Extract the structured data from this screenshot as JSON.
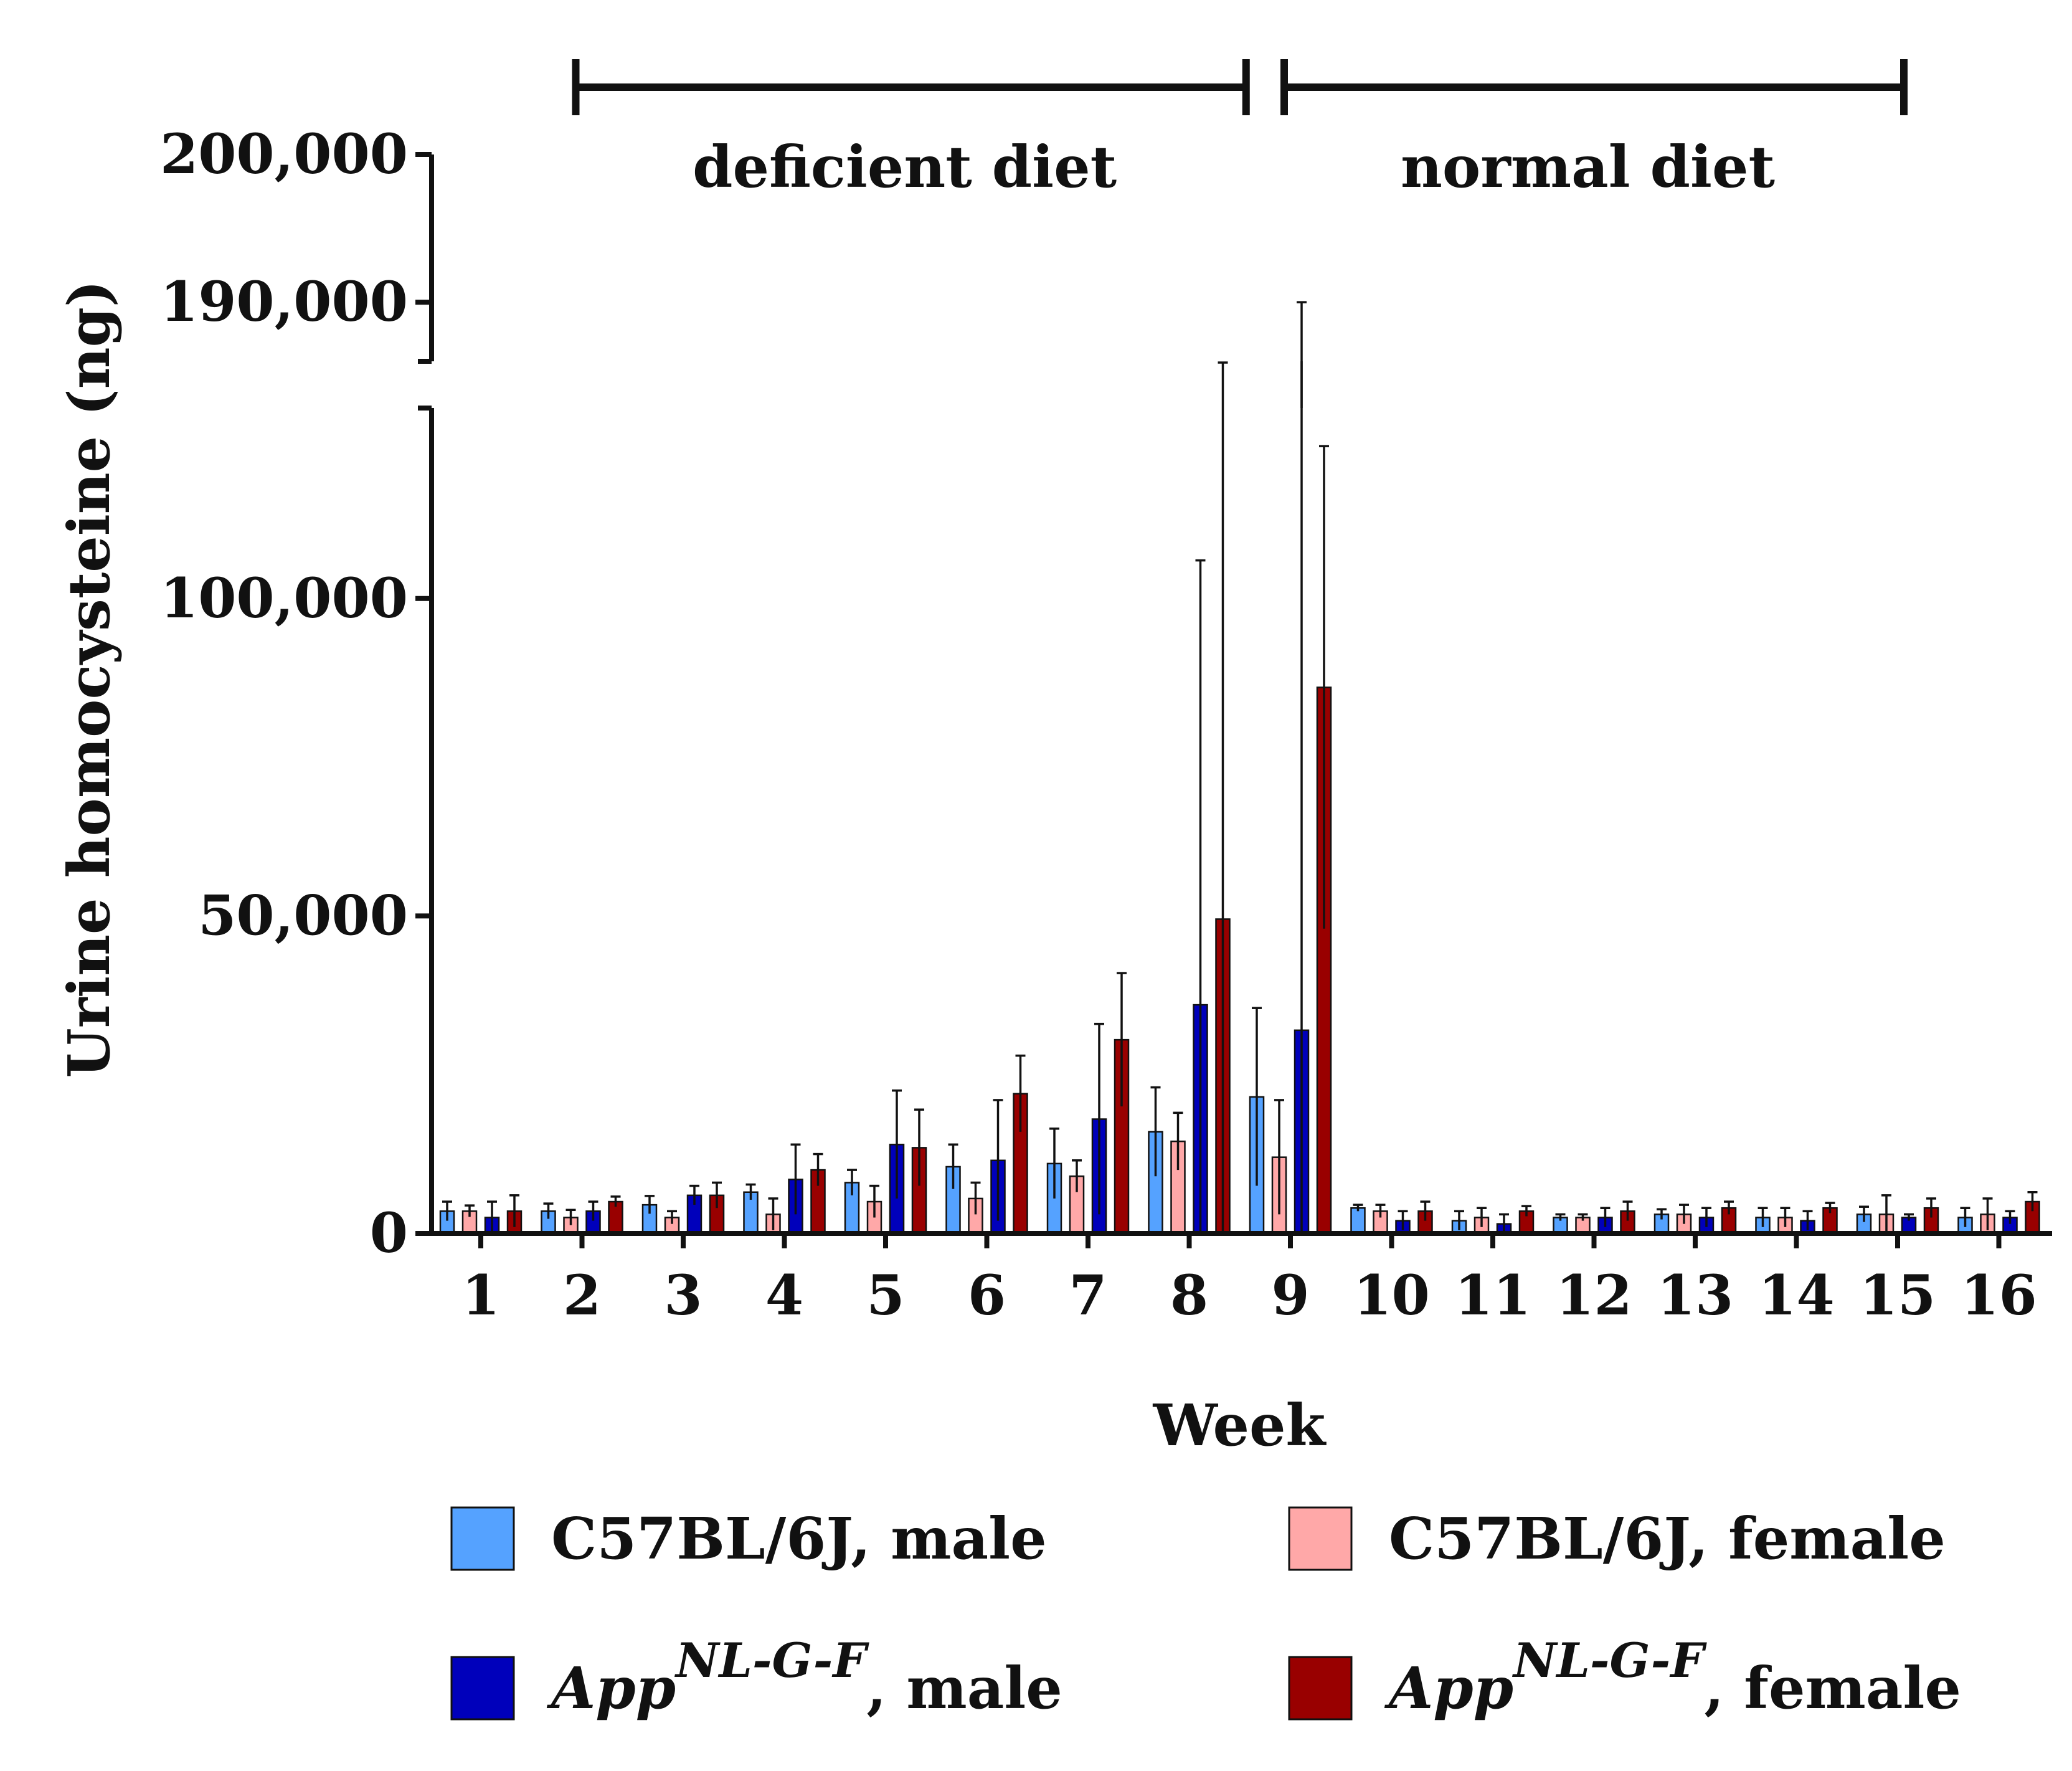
{
  "chart_data": {
    "type": "bar",
    "title": "",
    "xlabel": "Week",
    "ylabel": "Urine homocysteine (ng)",
    "categories": [
      "1",
      "2",
      "3",
      "4",
      "5",
      "6",
      "7",
      "8",
      "9",
      "10",
      "11",
      "12",
      "13",
      "14",
      "15",
      "16"
    ],
    "y_axis_lower": {
      "range": [
        0,
        130000
      ],
      "ticks": [
        {
          "value": 0,
          "label": "0"
        },
        {
          "value": 50000,
          "label": "50,000"
        },
        {
          "value": 100000,
          "label": "100,000"
        }
      ]
    },
    "y_axis_upper": {
      "range": [
        186000,
        200000
      ],
      "ticks": [
        {
          "value": 190000,
          "label": "190,000"
        },
        {
          "value": 200000,
          "label": "200,000"
        }
      ]
    },
    "periods": [
      {
        "label": "deficient diet",
        "from_week": 2,
        "to_week": 8.5
      },
      {
        "label": "normal diet",
        "from_week": 9,
        "to_week": 15
      }
    ],
    "series": [
      {
        "name": "C57BL/6J, male",
        "color": "#55a2ff",
        "values": [
          3500,
          3500,
          4500,
          6500,
          8000,
          10500,
          11000,
          16000,
          21500,
          4000,
          2000,
          2500,
          3000,
          2500,
          3000,
          2500
        ],
        "errors": [
          1500,
          1200,
          1400,
          1200,
          2000,
          3500,
          5500,
          7000,
          14000,
          500,
          1500,
          500,
          800,
          1500,
          1200,
          1500
        ]
      },
      {
        "name": "C57BL/6J, female",
        "color": "#ffa8a8",
        "values": [
          3500,
          2500,
          2500,
          3000,
          5000,
          5500,
          9000,
          14500,
          12000,
          3500,
          2500,
          2500,
          3000,
          2500,
          3000,
          3000
        ],
        "errors": [
          900,
          1200,
          1000,
          2500,
          2500,
          2500,
          2500,
          4500,
          9000,
          1000,
          1500,
          500,
          1500,
          1500,
          3000,
          2500
        ]
      },
      {
        "name": "App^NL-G-F, male",
        "color": "#0000bb",
        "values": [
          2500,
          3500,
          6000,
          8500,
          14000,
          11500,
          18000,
          36000,
          32000,
          2000,
          1500,
          2500,
          2500,
          2000,
          2500,
          2500
        ],
        "errors": [
          2500,
          1500,
          1500,
          5500,
          8500,
          9500,
          15000,
          70000,
          158000,
          1500,
          1500,
          1500,
          1500,
          1500,
          500,
          1000
        ]
      },
      {
        "name": "App^NL-G-F, female",
        "color": "#990000",
        "values": [
          3500,
          5000,
          6000,
          10000,
          13500,
          22000,
          30500,
          49500,
          86000,
          3500,
          3500,
          3500,
          4000,
          4000,
          4000,
          5000
        ],
        "errors": [
          2500,
          800,
          2000,
          2500,
          6000,
          6000,
          10500,
          135000,
          38000,
          1500,
          800,
          1500,
          1000,
          800,
          1500,
          1500
        ]
      }
    ],
    "legend": [
      {
        "base": "C57BL/6J, male",
        "sup": "",
        "suffix": "",
        "color": "#55a2ff"
      },
      {
        "base": "C57BL/6J, female",
        "sup": "",
        "suffix": "",
        "color": "#ffa8a8"
      },
      {
        "base": "App",
        "sup": "NL-G-F",
        "suffix": ", male",
        "color": "#0000bb"
      },
      {
        "base": "App",
        "sup": "NL-G-F",
        "suffix": ", female",
        "color": "#990000"
      }
    ]
  }
}
